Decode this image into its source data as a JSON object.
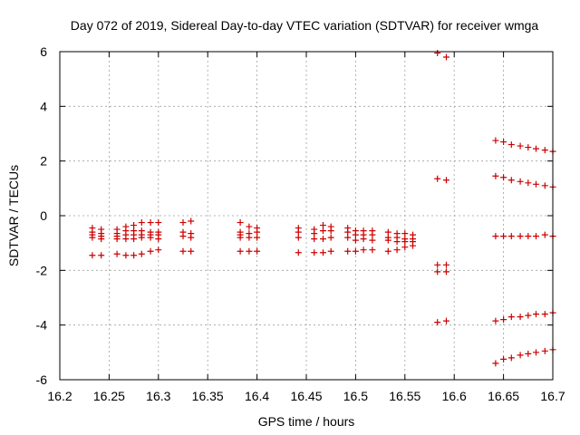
{
  "chart_data": {
    "type": "scatter",
    "title": "Day 072 of 2019, Sidereal Day-to-day VTEC variation (SDTVAR) for receiver wmga",
    "xlabel": "GPS time / hours",
    "ylabel": "SDTVAR / TECUs",
    "xlim": [
      16.2,
      16.7
    ],
    "ylim": [
      -6,
      6
    ],
    "xticks": [
      16.2,
      16.25,
      16.3,
      16.35,
      16.4,
      16.45,
      16.5,
      16.55,
      16.6,
      16.65,
      16.7
    ],
    "xtick_labels": [
      "16.2",
      "16.25",
      "16.3",
      "16.35",
      "16.4",
      "16.45",
      "16.5",
      "16.55",
      "16.6",
      "16.65",
      "16.7"
    ],
    "yticks": [
      -6,
      -4,
      -2,
      0,
      2,
      4,
      6
    ],
    "ytick_labels": [
      "-6",
      "-4",
      "-2",
      "0",
      "2",
      "4",
      "6"
    ],
    "grid": true,
    "marker": "+",
    "color": "#cc0000",
    "series": [
      {
        "name": "SDTVAR",
        "x": [
          16.233,
          16.233,
          16.233,
          16.233,
          16.233,
          16.242,
          16.242,
          16.242,
          16.242,
          16.242,
          16.258,
          16.258,
          16.258,
          16.258,
          16.258,
          16.267,
          16.267,
          16.267,
          16.267,
          16.267,
          16.275,
          16.275,
          16.275,
          16.275,
          16.275,
          16.283,
          16.283,
          16.283,
          16.283,
          16.283,
          16.292,
          16.292,
          16.292,
          16.292,
          16.292,
          16.3,
          16.3,
          16.3,
          16.3,
          16.3,
          16.325,
          16.325,
          16.325,
          16.325,
          16.333,
          16.333,
          16.333,
          16.333,
          16.383,
          16.383,
          16.383,
          16.383,
          16.383,
          16.392,
          16.392,
          16.392,
          16.392,
          16.4,
          16.4,
          16.4,
          16.4,
          16.442,
          16.442,
          16.442,
          16.442,
          16.458,
          16.458,
          16.458,
          16.458,
          16.467,
          16.467,
          16.467,
          16.467,
          16.475,
          16.475,
          16.475,
          16.475,
          16.492,
          16.492,
          16.492,
          16.492,
          16.5,
          16.5,
          16.5,
          16.5,
          16.508,
          16.508,
          16.508,
          16.508,
          16.517,
          16.517,
          16.517,
          16.517,
          16.533,
          16.533,
          16.533,
          16.533,
          16.542,
          16.542,
          16.542,
          16.542,
          16.55,
          16.55,
          16.55,
          16.55,
          16.558,
          16.558,
          16.558,
          16.558,
          16.583,
          16.583,
          16.583,
          16.583,
          16.583,
          16.592,
          16.592,
          16.592,
          16.592,
          16.592,
          16.642,
          16.642,
          16.642,
          16.642,
          16.642,
          16.65,
          16.65,
          16.65,
          16.65,
          16.65,
          16.658,
          16.658,
          16.658,
          16.658,
          16.658,
          16.667,
          16.667,
          16.667,
          16.667,
          16.667,
          16.675,
          16.675,
          16.675,
          16.675,
          16.675,
          16.683,
          16.683,
          16.683,
          16.683,
          16.683,
          16.692,
          16.692,
          16.692,
          16.692,
          16.692,
          16.7,
          16.7,
          16.7,
          16.7,
          16.7
        ],
        "y": [
          -0.45,
          -0.6,
          -0.7,
          -0.8,
          -1.45,
          -0.5,
          -0.65,
          -0.75,
          -0.85,
          -1.45,
          -0.5,
          -0.65,
          -0.75,
          -0.85,
          -1.4,
          -0.4,
          -0.55,
          -0.7,
          -0.85,
          -1.45,
          -0.35,
          -0.55,
          -0.7,
          -0.85,
          -1.45,
          -0.25,
          -0.55,
          -0.7,
          -0.8,
          -1.4,
          -0.25,
          -0.6,
          -0.7,
          -0.8,
          -1.3,
          -0.25,
          -0.6,
          -0.7,
          -0.85,
          -1.25,
          -0.25,
          -0.6,
          -0.75,
          -1.3,
          -0.2,
          -0.65,
          -0.8,
          -1.3,
          -0.25,
          -0.6,
          -0.7,
          -0.8,
          -1.3,
          -0.4,
          -0.65,
          -0.8,
          -1.3,
          -0.45,
          -0.6,
          -0.8,
          -1.3,
          -0.45,
          -0.6,
          -0.8,
          -1.35,
          -0.5,
          -0.65,
          -0.85,
          -1.35,
          -0.35,
          -0.55,
          -0.85,
          -1.35,
          -0.4,
          -0.55,
          -0.8,
          -1.3,
          -0.45,
          -0.6,
          -0.8,
          -1.3,
          -0.55,
          -0.7,
          -0.9,
          -1.3,
          -0.55,
          -0.7,
          -0.85,
          -1.25,
          -0.55,
          -0.7,
          -0.9,
          -1.25,
          -0.6,
          -0.8,
          -0.9,
          -1.3,
          -0.65,
          -0.8,
          -0.95,
          -1.25,
          -0.65,
          -0.85,
          -0.95,
          -1.15,
          -0.7,
          -0.85,
          -0.95,
          -1.1,
          5.95,
          1.35,
          -1.8,
          -2.05,
          -3.9,
          5.8,
          1.3,
          -1.8,
          -2.05,
          -3.85,
          2.75,
          1.45,
          -0.75,
          -3.85,
          -5.4,
          2.7,
          1.4,
          -0.75,
          -3.8,
          -5.25,
          2.6,
          1.3,
          -0.75,
          -3.7,
          -5.2,
          2.55,
          1.25,
          -0.75,
          -3.7,
          -5.1,
          2.5,
          1.2,
          -0.75,
          -3.65,
          -5.05,
          2.45,
          1.15,
          -0.75,
          -3.6,
          -5.0,
          2.4,
          1.1,
          -0.7,
          -3.6,
          -4.95,
          2.35,
          1.05,
          -0.75,
          -3.55,
          -4.9
        ]
      }
    ]
  }
}
